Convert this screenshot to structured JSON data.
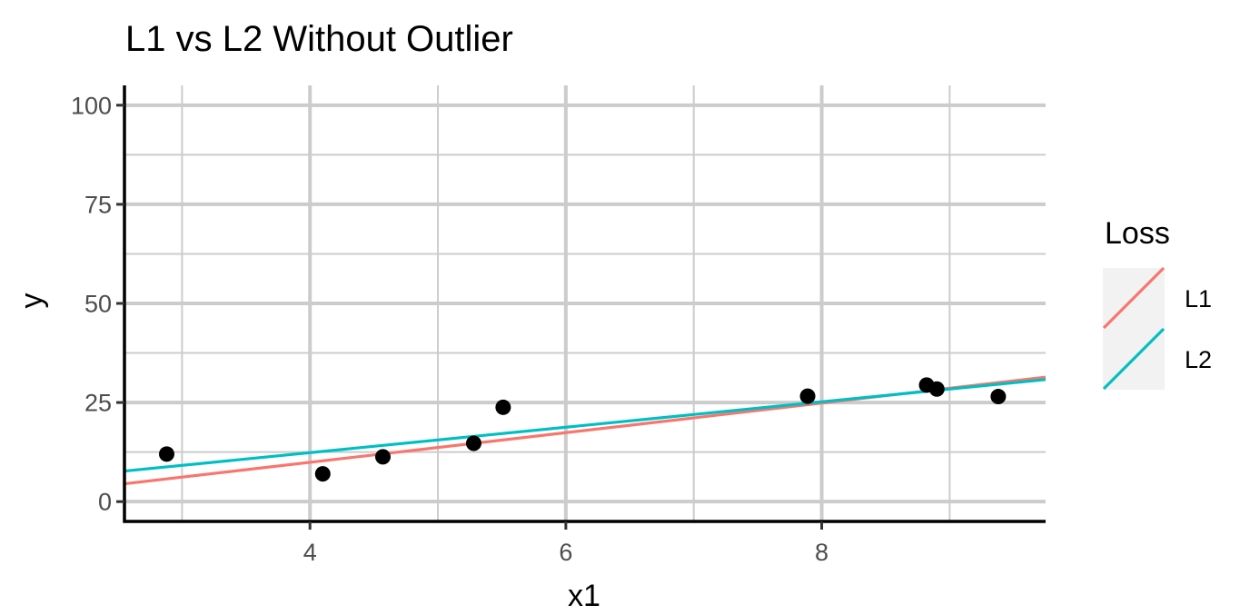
{
  "chart_data": {
    "type": "scatter",
    "title": "L1 vs L2 Without Outlier",
    "xlabel": "x1",
    "ylabel": "y",
    "xlim": [
      2.55,
      9.75
    ],
    "ylim": [
      -5,
      105
    ],
    "x_ticks": [
      4,
      6,
      8
    ],
    "y_ticks": [
      0,
      25,
      50,
      75,
      100
    ],
    "x_minor": [
      3,
      5,
      7,
      9
    ],
    "y_minor": [
      12.5,
      37.5,
      62.5,
      87.5
    ],
    "grid": true,
    "points": {
      "x": [
        2.88,
        4.1,
        4.57,
        5.28,
        5.51,
        7.89,
        8.82,
        8.9,
        9.38
      ],
      "y": [
        12,
        7,
        11.3,
        14.7,
        23.8,
        26.6,
        29.4,
        28.4,
        26.5
      ],
      "color": "#000000"
    },
    "series": [
      {
        "name": "L1",
        "color": "#F8766D",
        "x": [
          2.55,
          9.75
        ],
        "y": [
          4.5,
          31.4
        ]
      },
      {
        "name": "L2",
        "color": "#00BFC4",
        "x": [
          2.55,
          9.75
        ],
        "y": [
          7.7,
          30.8
        ]
      }
    ],
    "legend": {
      "title": "Loss",
      "position": "right",
      "entries": [
        "L1",
        "L2"
      ]
    }
  }
}
